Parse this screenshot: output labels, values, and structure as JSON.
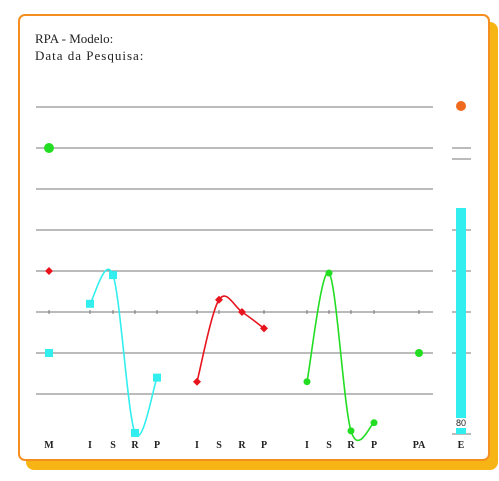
{
  "header": {
    "title": "RPA - Modelo:",
    "date_label": "Data da Pesquisa:"
  },
  "colors": {
    "border": "#f58e1f",
    "shadow": "#f7b515",
    "grid": "#777777",
    "m_marker_top": "#22dd22",
    "m_marker_mid": "#e8141d",
    "m_marker_low": "#33eeee",
    "cyan": "#33eeee",
    "red": "#e8141d",
    "green": "#22dd22",
    "e_marker": "#f06a1e",
    "e_bar": "#33eeee"
  },
  "chart_data": {
    "type": "line",
    "categories": [
      "M",
      "I",
      "S",
      "R",
      "P",
      "I",
      "S",
      "R",
      "P",
      "I",
      "S",
      "R",
      "P",
      "PA",
      "E"
    ],
    "grid_levels": 8,
    "y_range": [
      0,
      8
    ],
    "m_markers": [
      {
        "y": 7.0,
        "shape": "circle",
        "color": "#22dd22"
      },
      {
        "y": 4.0,
        "shape": "diamond",
        "color": "#e8141d"
      },
      {
        "y": 2.0,
        "shape": "square",
        "color": "#33eeee"
      }
    ],
    "series": [
      {
        "group": 1,
        "color": "#33eeee",
        "marker": "square",
        "points": [
          3.2,
          3.9,
          0.05,
          1.4
        ]
      },
      {
        "group": 2,
        "color": "#e8141d",
        "marker": "diamond",
        "points": [
          1.3,
          3.3,
          3.0,
          2.6
        ]
      },
      {
        "group": 3,
        "color": "#22dd22",
        "marker": "circle",
        "points": [
          1.3,
          3.95,
          0.1,
          0.3
        ]
      }
    ],
    "pa_value": 2.0,
    "e_bar": {
      "value": 80,
      "value_label": "80",
      "top_marker": "circle",
      "top_color": "#f06a1e"
    }
  }
}
